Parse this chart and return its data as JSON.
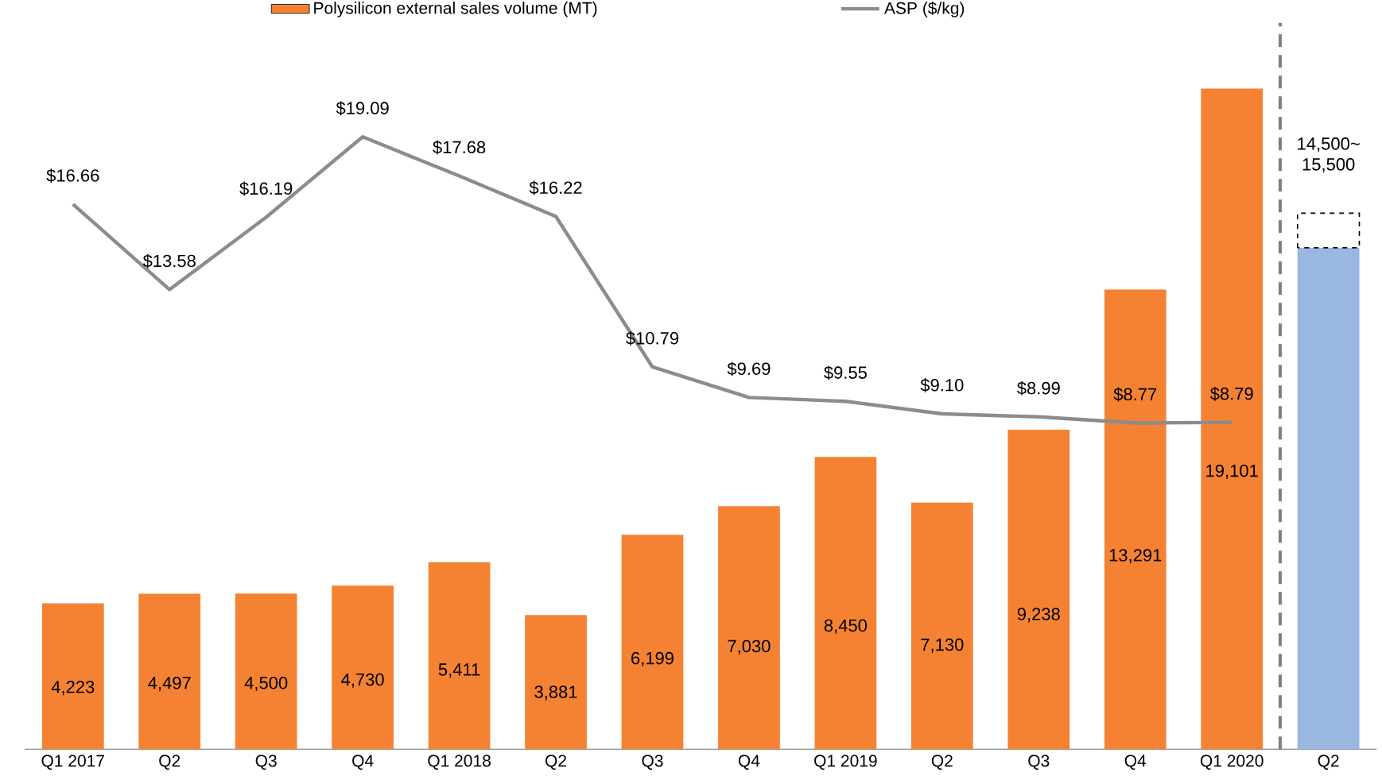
{
  "chart_data": {
    "type": "bar",
    "stacked": true,
    "legend": "top",
    "tick_labels": "x",
    "categories": [
      "Q1 2017",
      "Q2",
      "Q3",
      "Q4",
      "Q1 2018",
      "Q2",
      "Q3",
      "Q4",
      "Q1 2019",
      "Q2",
      "Q3",
      "Q4",
      "Q1 2020",
      "Q2"
    ],
    "series": [
      {
        "name": "Polysilicon external sales volume (MT)",
        "color": "#f58233",
        "values": [
          4223,
          4497,
          4500,
          4730,
          5411,
          3881,
          6199,
          7030,
          8450,
          7130,
          9238,
          13291,
          19101,
          null
        ],
        "value_labels": [
          "4,223",
          "4,497",
          "4,500",
          "4,730",
          "5,411",
          "3,881",
          "6,199",
          "7,030",
          "8,450",
          "7,130",
          "9,238",
          "13,291",
          "19,101",
          null
        ]
      },
      {
        "color": "#9ab7e1",
        "values": [
          null,
          null,
          null,
          null,
          null,
          null,
          null,
          null,
          null,
          null,
          null,
          null,
          null,
          14500
        ]
      },
      {
        "color": "#ffffff",
        "line_style": "dashed",
        "values": [
          null,
          null,
          null,
          null,
          null,
          null,
          null,
          null,
          null,
          null,
          null,
          null,
          null,
          1000
        ]
      },
      {
        "name": "ASP ($/kg)",
        "type": "line",
        "axis": "y2",
        "color": "#8c8c8c",
        "values": [
          16.66,
          13.58,
          16.19,
          19.09,
          17.68,
          16.22,
          10.79,
          9.69,
          9.55,
          9.1,
          8.99,
          8.77,
          8.79,
          null
        ],
        "value_labels": [
          "$16.66",
          "$13.58",
          "$16.19",
          "$19.09",
          "$17.68",
          "$16.22",
          "$10.79",
          "$9.69",
          "$9.55",
          "$9.10",
          "$8.99",
          "$8.77",
          "$8.79",
          null
        ]
      }
    ],
    "ylim": [
      0,
      21000
    ],
    "y2lim": [
      -3,
      23.2
    ],
    "annotations": [
      "14,500~ 15,500"
    ]
  }
}
